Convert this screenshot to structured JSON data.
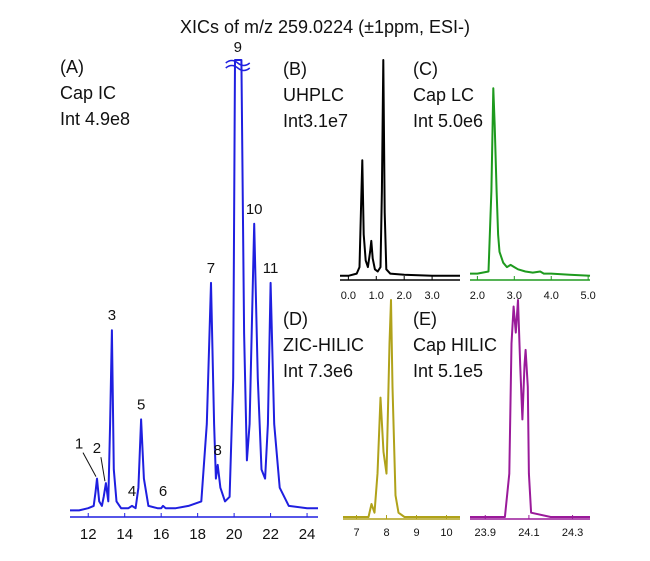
{
  "title": "XICs of m/z 259.0224 (±1ppm, ESI-)",
  "chart_data": [
    {
      "type": "line",
      "label": "(A)",
      "method": "Cap IC",
      "intensity": "Int 4.9e8",
      "color": "#1f1fe0",
      "xlim": [
        11.0,
        24.6
      ],
      "ylim": [
        0,
        100
      ],
      "xticks": [
        12,
        14,
        16,
        18,
        20,
        22,
        24
      ],
      "x": [
        11.0,
        11.5,
        12.0,
        12.3,
        12.4,
        12.48,
        12.6,
        12.75,
        12.85,
        12.97,
        13.1,
        13.2,
        13.3,
        13.4,
        13.55,
        13.8,
        14.2,
        14.4,
        14.6,
        14.75,
        14.9,
        15.05,
        15.3,
        15.8,
        16.0,
        16.1,
        16.25,
        16.8,
        17.5,
        18.2,
        18.5,
        18.73,
        18.9,
        19.0,
        19.1,
        19.25,
        19.5,
        19.75,
        19.95,
        20.05,
        20.2,
        20.4,
        20.55,
        20.7,
        20.85,
        21.1,
        21.3,
        21.5,
        21.7,
        21.85,
        22.0,
        22.2,
        22.5,
        23.0,
        24.0,
        24.6
      ],
      "y": [
        1,
        1,
        1.5,
        2,
        5,
        8,
        3,
        2,
        4,
        7,
        3,
        20,
        40.6,
        10,
        3,
        1.5,
        1.5,
        2,
        1.5,
        6,
        21,
        8,
        2,
        1.5,
        1.5,
        2,
        1.5,
        1.5,
        2,
        3,
        20,
        51,
        20,
        8,
        11,
        6,
        3,
        4,
        30,
        100,
        100,
        100,
        40,
        12,
        20,
        64,
        30,
        10,
        8,
        20,
        51,
        20,
        6,
        2,
        1.5,
        1.5
      ],
      "annotations": [
        {
          "text": "1",
          "x": 12.48,
          "y": 8
        },
        {
          "text": "2",
          "x": 12.97,
          "y": 7
        },
        {
          "text": "3",
          "x": 13.3,
          "y": 40.6
        },
        {
          "text": "4",
          "x": 14.4,
          "y": 2
        },
        {
          "text": "5",
          "x": 14.9,
          "y": 21
        },
        {
          "text": "6",
          "x": 16.1,
          "y": 2
        },
        {
          "text": "7",
          "x": 18.73,
          "y": 51
        },
        {
          "text": "8",
          "x": 19.1,
          "y": 11
        },
        {
          "text": "9",
          "x": 20.2,
          "y": 100
        },
        {
          "text": "10",
          "x": 21.1,
          "y": 64
        },
        {
          "text": "11",
          "x": 22.0,
          "y": 51
        }
      ]
    },
    {
      "type": "line",
      "label": "(B)",
      "method": "UHPLC",
      "intensity": "Int3.1e7",
      "color": "#000000",
      "xlim": [
        -0.3,
        4.0
      ],
      "ylim": [
        0,
        100
      ],
      "xticks": [
        {
          "value": 0,
          "label": "0.0"
        },
        {
          "value": 1,
          "label": "1.0"
        },
        {
          "value": 2,
          "label": "2.0"
        },
        {
          "value": 3,
          "label": "3.0"
        }
      ],
      "x": [
        -0.3,
        0.0,
        0.3,
        0.4,
        0.45,
        0.5,
        0.55,
        0.62,
        0.7,
        0.78,
        0.82,
        0.87,
        0.95,
        1.05,
        1.15,
        1.2,
        1.25,
        1.3,
        1.36,
        1.5,
        2.0,
        3.0,
        4.0
      ],
      "y": [
        1,
        1,
        2,
        5,
        30,
        54,
        20,
        8,
        5,
        12,
        17,
        9,
        4,
        3,
        5,
        40,
        100,
        30,
        4,
        2,
        1.5,
        1,
        1
      ]
    },
    {
      "type": "line",
      "label": "(C)",
      "method": "Cap LC",
      "intensity": "Int 5.0e6",
      "color": "#1e9a1e",
      "xlim": [
        1.8,
        5.05
      ],
      "ylim": [
        0,
        100
      ],
      "xticks": [
        {
          "value": 2,
          "label": "2.0"
        },
        {
          "value": 3,
          "label": "3.0"
        },
        {
          "value": 4,
          "label": "4.0"
        },
        {
          "value": 5,
          "label": "5.0"
        }
      ],
      "x": [
        1.8,
        2.0,
        2.3,
        2.38,
        2.43,
        2.47,
        2.52,
        2.56,
        2.6,
        2.7,
        2.8,
        2.9,
        3.0,
        3.1,
        3.3,
        3.5,
        3.7,
        3.8,
        4.0,
        4.5,
        5.05
      ],
      "y": [
        2,
        2,
        3,
        40,
        87,
        70,
        40,
        20,
        12,
        7,
        5,
        6,
        5,
        4,
        3,
        2.5,
        3,
        2,
        2,
        1.5,
        1
      ]
    },
    {
      "type": "line",
      "label": "(D)",
      "method": "ZIC-HILIC",
      "intensity": "Int 7.3e6",
      "color": "#b0a21a",
      "xlim": [
        6.55,
        10.45
      ],
      "ylim": [
        0,
        100
      ],
      "xticks": [
        7,
        8,
        9,
        10
      ],
      "x": [
        6.55,
        7.0,
        7.4,
        7.5,
        7.6,
        7.7,
        7.8,
        7.9,
        8.0,
        8.1,
        8.15,
        8.2,
        8.3,
        8.4,
        8.6,
        9.0,
        10.45
      ],
      "y": [
        0,
        0,
        0,
        6,
        2,
        20,
        55,
        30,
        20,
        80,
        100,
        60,
        10,
        2,
        0,
        0,
        0
      ]
    },
    {
      "type": "line",
      "label": "(E)",
      "method": "Cap HILIC",
      "intensity": "Int 5.1e5",
      "color": "#9a1a9a",
      "xlim": [
        23.83,
        24.38
      ],
      "ylim": [
        0,
        100
      ],
      "xticks": [
        23.9,
        24.1,
        24.3
      ],
      "x": [
        23.83,
        23.95,
        23.99,
        24.01,
        24.02,
        24.03,
        24.04,
        24.05,
        24.06,
        24.07,
        24.08,
        24.085,
        24.095,
        24.1,
        24.11,
        24.2,
        24.38
      ],
      "y": [
        0,
        0,
        0,
        20,
        80,
        97,
        85,
        100,
        70,
        45,
        70,
        77,
        60,
        20,
        2,
        0,
        0
      ]
    }
  ]
}
